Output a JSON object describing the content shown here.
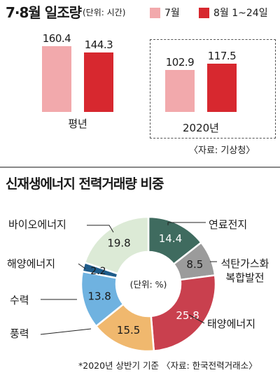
{
  "sunlight": {
    "title": "7·8월 일조량",
    "unit": "(단위: 시간)",
    "legend": [
      {
        "label": "7월",
        "color": "#f2a9ac"
      },
      {
        "label": "8월 1~24일",
        "color": "#d7282f"
      }
    ],
    "source": "〈자료: 기상청〉"
  },
  "renewable": {
    "title": "신재생에너지 전력거래량 비중",
    "center_label": "(단위: %)",
    "footnote": "*2020년 상반기 기준  〈자료: 한국전력거래소〉"
  },
  "chart_data": [
    {
      "type": "bar",
      "title": "7·8월 일조량",
      "ylabel": "(단위: 시간)",
      "categories": [
        "평년",
        "2020년"
      ],
      "series": [
        {
          "name": "7월",
          "values": [
            160.4,
            102.9
          ]
        },
        {
          "name": "8월 1~24일",
          "values": [
            144.3,
            117.5
          ]
        }
      ],
      "ylim": [
        0,
        160.4
      ],
      "colors": [
        "#f2a9ac",
        "#d7282f"
      ]
    },
    {
      "type": "pie",
      "title": "신재생에너지 전력거래량 비중",
      "labels": [
        "연료전지",
        "석탄가스화 복합발전",
        "태양에너지",
        "풍력",
        "수력",
        "해양에너지",
        "바이오에너지"
      ],
      "values": [
        14.4,
        8.5,
        25.8,
        15.5,
        13.8,
        2.2,
        19.8
      ],
      "value_labels": [
        "14.4",
        "8.5",
        "25.8",
        "15.5",
        "13.8",
        "2.2",
        "19.8"
      ],
      "colors": [
        "#3f6b5f",
        "#9b9b9b",
        "#c9404e",
        "#f0b86e",
        "#6fb2e0",
        "#1f5c8a",
        "#dcead6"
      ]
    }
  ]
}
